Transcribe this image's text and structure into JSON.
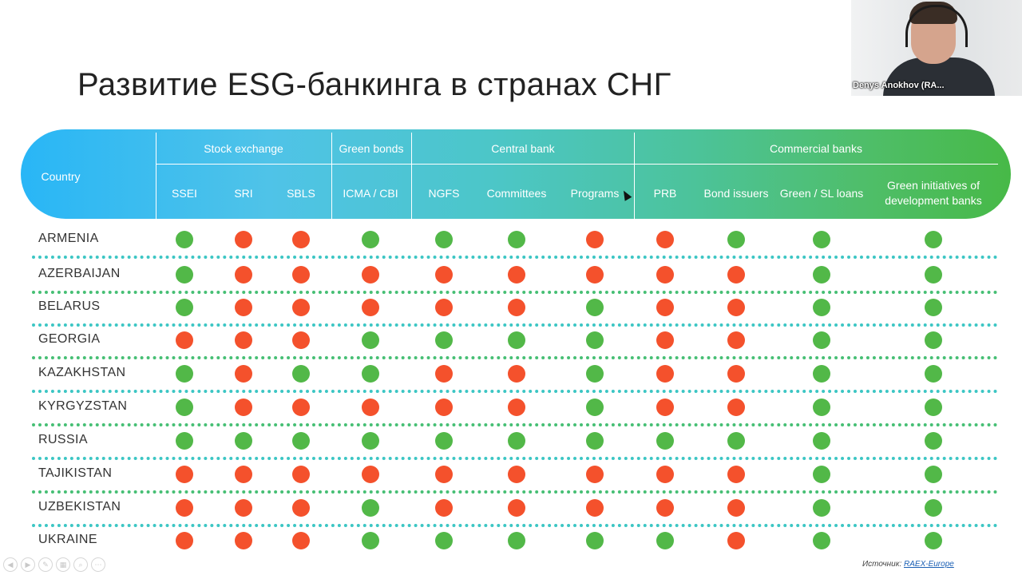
{
  "title": "Развитие ESG-банкинга в странах СНГ",
  "header": {
    "country_label": "Country",
    "groups": [
      "Stock exchange",
      "Green bonds",
      "Central bank",
      "Commercial banks"
    ],
    "columns": [
      "SSEI",
      "SRI",
      "SBLS",
      "ICMA / CBI",
      "NGFS",
      "Committees",
      "Programs",
      "PRB",
      "Bond issuers",
      "Green / SL loans",
      "Green initiatives of development banks"
    ]
  },
  "rows": [
    {
      "country": "ARMENIA",
      "status": [
        "green",
        "red",
        "red",
        "green",
        "green",
        "green",
        "red",
        "red",
        "green",
        "green",
        "green"
      ]
    },
    {
      "country": "AZERBAIJAN",
      "status": [
        "green",
        "red",
        "red",
        "red",
        "red",
        "red",
        "red",
        "red",
        "red",
        "green",
        "green"
      ]
    },
    {
      "country": "BELARUS",
      "status": [
        "green",
        "red",
        "red",
        "red",
        "red",
        "red",
        "green",
        "red",
        "red",
        "green",
        "green"
      ]
    },
    {
      "country": "GEORGIA",
      "status": [
        "red",
        "red",
        "red",
        "green",
        "green",
        "green",
        "green",
        "red",
        "red",
        "green",
        "green"
      ]
    },
    {
      "country": "KAZAKHSTAN",
      "status": [
        "green",
        "red",
        "green",
        "green",
        "red",
        "red",
        "green",
        "red",
        "red",
        "green",
        "green"
      ]
    },
    {
      "country": "KYRGYZSTAN",
      "status": [
        "green",
        "red",
        "red",
        "red",
        "red",
        "red",
        "green",
        "red",
        "red",
        "green",
        "green"
      ]
    },
    {
      "country": "RUSSIA",
      "status": [
        "green",
        "green",
        "green",
        "green",
        "green",
        "green",
        "green",
        "green",
        "green",
        "green",
        "green"
      ]
    },
    {
      "country": "TAJIKISTAN",
      "status": [
        "red",
        "red",
        "red",
        "red",
        "red",
        "red",
        "red",
        "red",
        "red",
        "green",
        "green"
      ]
    },
    {
      "country": "UZBEKISTAN",
      "status": [
        "red",
        "red",
        "red",
        "green",
        "red",
        "red",
        "red",
        "red",
        "red",
        "green",
        "green"
      ]
    },
    {
      "country": "UKRAINE",
      "status": [
        "red",
        "red",
        "red",
        "green",
        "green",
        "green",
        "green",
        "green",
        "red",
        "green",
        "green"
      ]
    }
  ],
  "colors": {
    "green": "#52b848",
    "red": "#f4512c"
  },
  "webcam": {
    "name": "Denys Anokhov (RA..."
  },
  "source": {
    "label": "Источник:",
    "link": "RAEX-Europe"
  }
}
